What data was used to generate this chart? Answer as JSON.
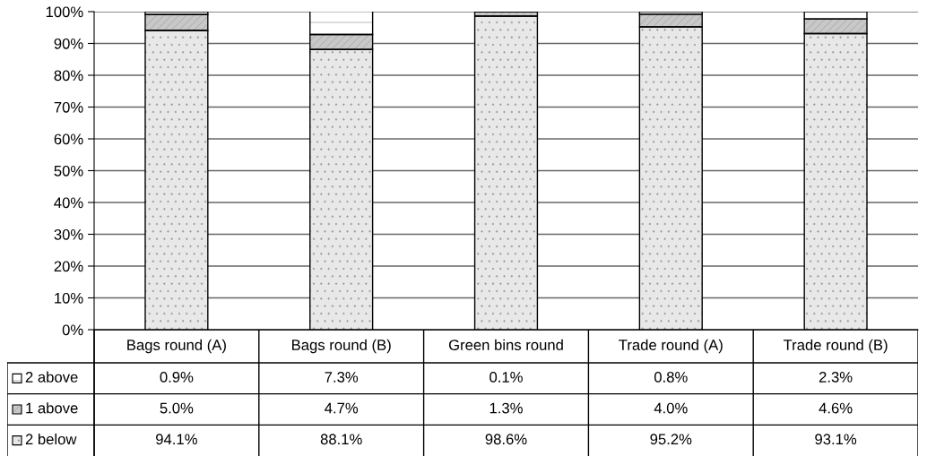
{
  "chart_data": {
    "type": "bar",
    "stacked": true,
    "categories": [
      "Bags round (A)",
      "Bags round (B)",
      "Green bins round",
      "Trade round (A)",
      "Trade round (B)"
    ],
    "series": [
      {
        "name": "2 below",
        "color": "#e8e8e8",
        "values": [
          94.1,
          88.1,
          98.6,
          95.2,
          93.1
        ],
        "value_labels": [
          "94.1%",
          "88.1%",
          "98.6%",
          "95.2%",
          "93.1%"
        ]
      },
      {
        "name": "1 above",
        "color": "#c8c8c8",
        "values": [
          5.0,
          4.7,
          1.3,
          4.0,
          4.6
        ],
        "value_labels": [
          "5.0%",
          "4.7%",
          "1.3%",
          "4.0%",
          "4.6%"
        ]
      },
      {
        "name": "2 above",
        "color": "#ffffff",
        "values": [
          0.9,
          7.3,
          0.1,
          0.8,
          2.3
        ],
        "value_labels": [
          "0.9%",
          "7.3%",
          "0.1%",
          "0.8%",
          "2.3%"
        ]
      }
    ],
    "ylim": [
      0,
      100
    ],
    "yticks": [
      {
        "value": 0,
        "label": "0%"
      },
      {
        "value": 10,
        "label": "10%"
      },
      {
        "value": 20,
        "label": "20%"
      },
      {
        "value": 30,
        "label": "30%"
      },
      {
        "value": 40,
        "label": "40%"
      },
      {
        "value": 50,
        "label": "50%"
      },
      {
        "value": 60,
        "label": "60%"
      },
      {
        "value": 70,
        "label": "70%"
      },
      {
        "value": 80,
        "label": "80%"
      },
      {
        "value": 90,
        "label": "90%"
      },
      {
        "value": 100,
        "label": "100%"
      }
    ],
    "grid": "y",
    "legend": "bottom left"
  }
}
